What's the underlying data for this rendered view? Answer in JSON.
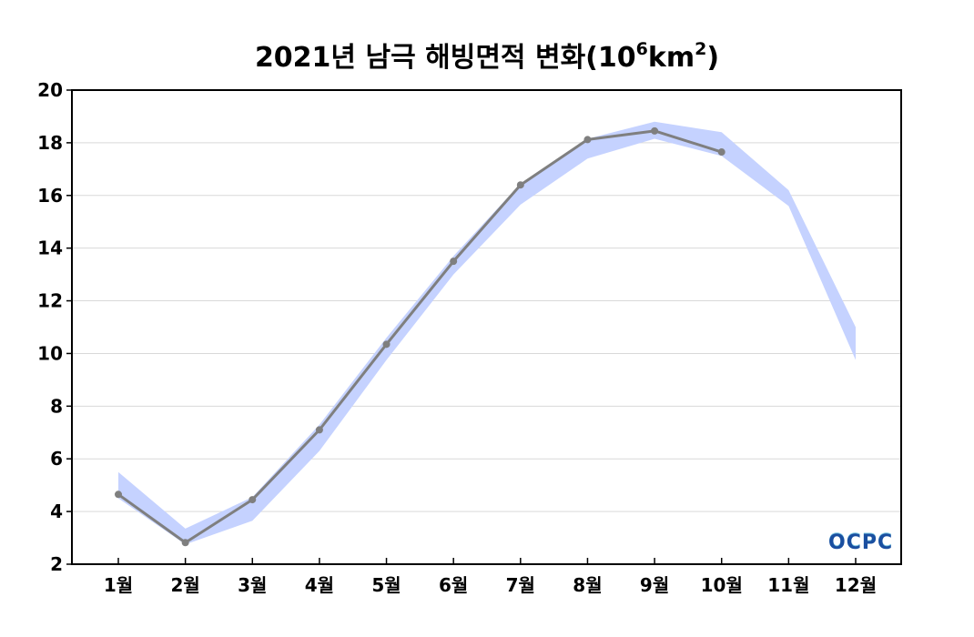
{
  "title": {
    "prefix": "2021년 남극 해빙면적 변화(10",
    "exp1": "6",
    "mid": "km",
    "exp2": "2",
    "suffix": ")"
  },
  "logo": {
    "text": "OCPC",
    "color": "#1a4fa0",
    "accent": "#7ec8e3"
  },
  "colors": {
    "line": "#7f7f7f",
    "band": "#c5d2ff",
    "grid": "#d9d9d9",
    "axis": "#000000"
  },
  "chart_data": {
    "type": "line",
    "categories": [
      "1월",
      "2월",
      "3월",
      "4월",
      "5월",
      "6월",
      "7월",
      "8월",
      "9월",
      "10월",
      "11월",
      "12월"
    ],
    "ylim": [
      2,
      20
    ],
    "yticks": [
      2,
      4,
      6,
      8,
      10,
      12,
      14,
      16,
      18,
      20
    ],
    "grid": true,
    "series": [
      {
        "values": [
          4.65,
          2.82,
          4.45,
          7.1,
          10.35,
          13.5,
          16.4,
          18.12,
          18.45,
          17.65,
          null,
          null
        ]
      }
    ],
    "band": {
      "upper": [
        5.5,
        3.35,
        4.55,
        7.3,
        10.6,
        13.7,
        16.45,
        18.15,
        18.8,
        18.4,
        16.2,
        11.0
      ],
      "lower": [
        4.5,
        2.75,
        3.65,
        6.3,
        9.75,
        13.0,
        15.65,
        17.4,
        18.15,
        17.5,
        15.6,
        9.75
      ]
    }
  }
}
